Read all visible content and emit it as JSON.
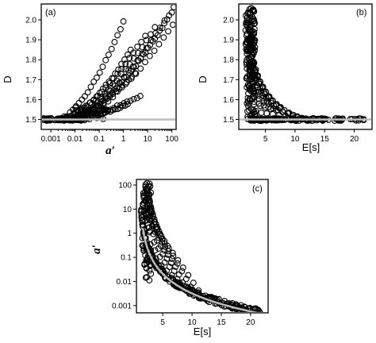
{
  "chart_data": [
    {
      "panel": "(a)",
      "type": "scatter",
      "xlabel": "a′",
      "ylabel": "D",
      "xscale": "log",
      "xlim": [
        0.0004,
        150
      ],
      "ylim": [
        1.45,
        2.08
      ],
      "xticks": [
        0.001,
        0.01,
        0.1,
        1,
        10,
        100
      ],
      "xtick_labels": [
        "0.001",
        "0.01",
        "0.1",
        "1",
        "10",
        "100"
      ],
      "yticks": [
        1.5,
        1.6,
        1.7,
        1.8,
        1.9,
        2.0
      ],
      "ytick_labels": [
        "1.5",
        "1.6",
        "1.7",
        "1.8",
        "1.9",
        "2.0"
      ],
      "reference_line": {
        "y": 1.5,
        "color": "#bdbdbd"
      },
      "branches": [
        {
          "a0": 0.002,
          "a1": 1.0,
          "D1": 1.99
        },
        {
          "a0": 0.003,
          "a1": 2.0,
          "D1": 1.85
        },
        {
          "a0": 0.004,
          "a1": 3.0,
          "D1": 1.73
        },
        {
          "a0": 0.005,
          "a1": 5.0,
          "D1": 1.62
        },
        {
          "a0": 0.008,
          "a1": 1.5,
          "D1": 1.58
        },
        {
          "a0": 0.002,
          "a1": 8.0,
          "D1": 1.92
        },
        {
          "a0": 0.003,
          "a1": 20.0,
          "D1": 1.96
        },
        {
          "a0": 0.004,
          "a1": 50.0,
          "D1": 2.0
        },
        {
          "a0": 0.005,
          "a1": 100.0,
          "D1": 2.04
        },
        {
          "a0": 0.006,
          "a1": 120.0,
          "D1": 2.06
        },
        {
          "a0": 0.007,
          "a1": 110.0,
          "D1": 1.98
        }
      ]
    },
    {
      "panel": "(b)",
      "type": "scatter",
      "xlabel": "E[s]",
      "ylabel": "D",
      "xlim": [
        0.5,
        23
      ],
      "ylim": [
        1.45,
        2.08
      ],
      "xticks": [
        5,
        10,
        15,
        20
      ],
      "xtick_labels": [
        "5",
        "10",
        "15",
        "20"
      ],
      "yticks": [
        1.5,
        1.6,
        1.7,
        1.8,
        1.9,
        2.0
      ],
      "ytick_labels": [
        "1.5",
        "1.6",
        "1.7",
        "1.8",
        "1.9",
        "2.0"
      ],
      "reference_line": {
        "y": 1.5,
        "color": "#bdbdbd"
      },
      "peak": {
        "E": 2.3,
        "D": 2.06
      },
      "fan_endpoints_E": [
        3.2,
        4.5,
        5.5,
        6.6,
        7.8,
        9.0,
        10.2,
        11.2,
        12.0
      ]
    },
    {
      "panel": "(c)",
      "type": "scatter",
      "xlabel": "E[s]",
      "ylabel": "a′",
      "yscale": "log",
      "xlim": [
        0.5,
        23
      ],
      "ylim": [
        0.0005,
        170
      ],
      "xticks": [
        5,
        10,
        15,
        20
      ],
      "xtick_labels": [
        "5",
        "10",
        "15",
        "20"
      ],
      "yticks": [
        0.001,
        0.01,
        0.1,
        1,
        10,
        100
      ],
      "ytick_labels": [
        "0.001",
        "0.01",
        "0.1",
        "1",
        "10",
        "100"
      ],
      "reference_curve": {
        "form": "a = k / (E - E0)^p",
        "E0": 1.0,
        "k": 0.5,
        "p": 2.3,
        "color": "#bdbdbd"
      },
      "peak": {
        "E": 2.3,
        "a": 120
      },
      "fan_endpoints_E": [
        4.0,
        5.0,
        6.0,
        7.0,
        8.0,
        9.0,
        10.5,
        12.0
      ]
    }
  ]
}
